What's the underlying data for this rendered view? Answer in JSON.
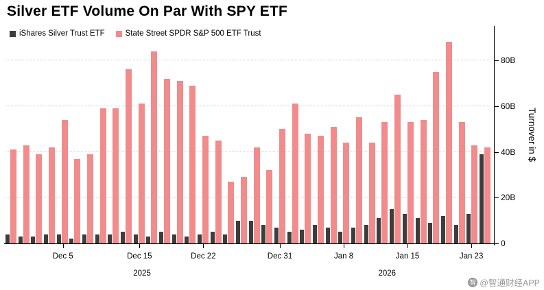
{
  "title": "Silver ETF Volume On Par With SPY ETF",
  "legend": {
    "items": [
      {
        "label": "iShares Silver Trust ETF",
        "color": "#3d3d3d"
      },
      {
        "label": "State Street SPDR S&P 500 ETF Trust",
        "color": "#f28b8b"
      }
    ]
  },
  "watermark": {
    "logo": "智",
    "text": "@智通财经APP"
  },
  "chart_data": {
    "type": "bar",
    "title": "Silver ETF Volume On Par With SPY ETF",
    "ylabel": "Turnover in $",
    "unit": "billions USD",
    "ylim": [
      0,
      95
    ],
    "grid": "dotted horizontal lines at 20B intervals",
    "legend_position": "top-left",
    "series": [
      {
        "name": "iShares Silver Trust ETF",
        "color": "#3d3d3d",
        "values": [
          4,
          3,
          3,
          4,
          4,
          2,
          4,
          4,
          4,
          5,
          4,
          3,
          5,
          4,
          3,
          4,
          5,
          4,
          10,
          10,
          8,
          7,
          5,
          6,
          8,
          7,
          5,
          7,
          8,
          11,
          15,
          13,
          11,
          9,
          12,
          8,
          13,
          39
        ]
      },
      {
        "name": "State Street SPDR S&P 500 ETF Trust",
        "color": "#f28b8b",
        "values": [
          41,
          43,
          39,
          42,
          54,
          37,
          39,
          59,
          59,
          76,
          61,
          84,
          72,
          71,
          69,
          47,
          45,
          27,
          29,
          42,
          32,
          50,
          61,
          48,
          47,
          51,
          44,
          55,
          44,
          53,
          65,
          53,
          54,
          75,
          88,
          53,
          43,
          42
        ]
      }
    ],
    "yticks": [
      {
        "value": 0,
        "label": "0"
      },
      {
        "value": 20,
        "label": "20B"
      },
      {
        "value": 40,
        "label": "40B"
      },
      {
        "value": 60,
        "label": "60B"
      },
      {
        "value": 80,
        "label": "80B"
      }
    ],
    "xticks": [
      {
        "index": 4,
        "label": "Dec 5"
      },
      {
        "index": 10,
        "label": "Dec 15"
      },
      {
        "index": 15,
        "label": "Dec 22"
      },
      {
        "index": 21,
        "label": "Dec 31"
      },
      {
        "index": 26,
        "label": "Jan 8"
      },
      {
        "index": 31,
        "label": "Jan 15"
      },
      {
        "index": 36,
        "label": "Jan 23"
      }
    ],
    "year_labels": [
      {
        "index": 10.2,
        "label": "2025"
      },
      {
        "index": 29.4,
        "label": "2026"
      }
    ]
  }
}
